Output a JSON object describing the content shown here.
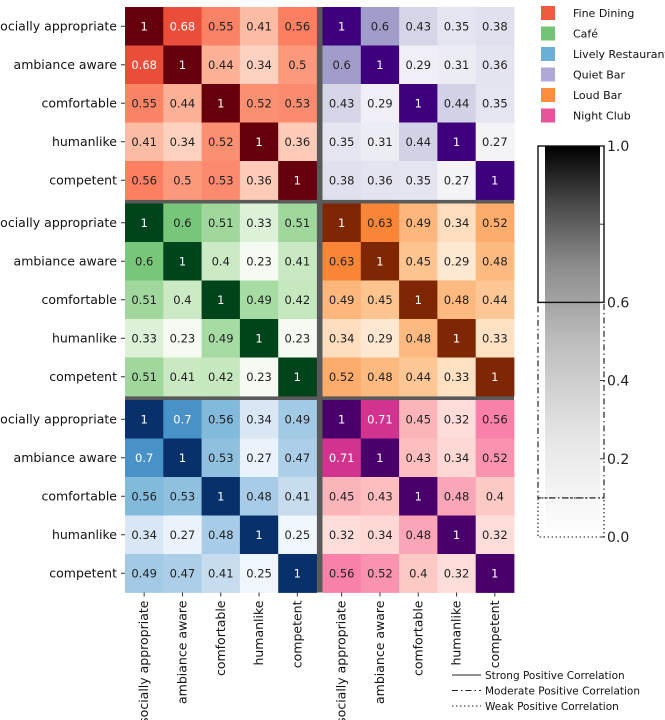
{
  "chart_data": {
    "type": "heatmap",
    "title": "",
    "variables": [
      "socially appropriate",
      "ambiance aware",
      "comfortable",
      "humanlike",
      "competent"
    ],
    "panels": [
      {
        "name": "Fine Dining",
        "color": "#f05a40",
        "matrix": [
          [
            1,
            0.68,
            0.55,
            0.41,
            0.56
          ],
          [
            0.68,
            1,
            0.44,
            0.34,
            0.5
          ],
          [
            0.55,
            0.44,
            1,
            0.52,
            0.53
          ],
          [
            0.41,
            0.34,
            0.52,
            1,
            0.36
          ],
          [
            0.56,
            0.5,
            0.53,
            0.36,
            1
          ]
        ]
      },
      {
        "name": "Quiet Bar",
        "color": "#b0a8d6",
        "matrix": [
          [
            1,
            0.6,
            0.43,
            0.35,
            0.38
          ],
          [
            0.6,
            1,
            0.29,
            0.31,
            0.36
          ],
          [
            0.43,
            0.29,
            1,
            0.44,
            0.35
          ],
          [
            0.35,
            0.31,
            0.44,
            1,
            0.27
          ],
          [
            0.38,
            0.36,
            0.35,
            0.27,
            1
          ]
        ]
      },
      {
        "name": "Café",
        "color": "#74c476",
        "matrix": [
          [
            1,
            0.6,
            0.51,
            0.33,
            0.51
          ],
          [
            0.6,
            1,
            0.4,
            0.23,
            0.41
          ],
          [
            0.51,
            0.4,
            1,
            0.49,
            0.42
          ],
          [
            0.33,
            0.23,
            0.49,
            1,
            0.23
          ],
          [
            0.51,
            0.41,
            0.42,
            0.23,
            1
          ]
        ]
      },
      {
        "name": "Loud Bar",
        "color": "#fd8d3c",
        "matrix": [
          [
            1,
            0.63,
            0.49,
            0.34,
            0.52
          ],
          [
            0.63,
            1,
            0.45,
            0.29,
            0.48
          ],
          [
            0.49,
            0.45,
            1,
            0.48,
            0.44
          ],
          [
            0.34,
            0.29,
            0.48,
            1,
            0.33
          ],
          [
            0.52,
            0.48,
            0.44,
            0.33,
            1
          ]
        ]
      },
      {
        "name": "Lively Restaurant",
        "color": "#6baed6",
        "matrix": [
          [
            1,
            0.7,
            0.56,
            0.34,
            0.49
          ],
          [
            0.7,
            1,
            0.53,
            0.27,
            0.47
          ],
          [
            0.56,
            0.53,
            1,
            0.48,
            0.41
          ],
          [
            0.34,
            0.27,
            0.48,
            1,
            0.25
          ],
          [
            0.49,
            0.47,
            0.41,
            0.25,
            1
          ]
        ]
      },
      {
        "name": "Night Club",
        "color": "#e7529a",
        "matrix": [
          [
            1,
            0.71,
            0.45,
            0.32,
            0.56
          ],
          [
            0.71,
            1,
            0.43,
            0.34,
            0.52
          ],
          [
            0.45,
            0.43,
            1,
            0.48,
            0.4
          ],
          [
            0.32,
            0.34,
            0.48,
            1,
            0.32
          ],
          [
            0.56,
            0.52,
            0.4,
            0.32,
            1
          ]
        ]
      }
    ],
    "legend": {
      "position": "top-right",
      "entries": [
        {
          "label": "Fine Dining",
          "color": "#f05a40"
        },
        {
          "label": "Café",
          "color": "#74c476"
        },
        {
          "label": "Lively Restaurant",
          "color": "#6baed6"
        },
        {
          "label": "Quiet Bar",
          "color": "#b0a8d6"
        },
        {
          "label": "Loud Bar",
          "color": "#fd8d3c"
        },
        {
          "label": "Night Club",
          "color": "#e7529a"
        }
      ]
    },
    "colorbar": {
      "range": [
        0,
        1
      ],
      "ticks": [
        "0.0",
        "0.2",
        "0.4",
        "0.6",
        "0.8",
        "1.0"
      ],
      "regions": [
        {
          "label": "Strong Positive Correlation",
          "range": [
            0.6,
            1.0
          ],
          "style": "solid"
        },
        {
          "label": "Moderate Positive Correlation",
          "range": [
            0.1,
            0.6
          ],
          "style": "dash-dot"
        },
        {
          "label": "Weak Positive Correlation",
          "range": [
            0.0,
            0.1
          ],
          "style": "dotted"
        }
      ]
    },
    "line_legend": [
      {
        "label": "Strong Positive Correlation",
        "style": "solid"
      },
      {
        "label": "Moderate Positive Correlation",
        "style": "dash-dot"
      },
      {
        "label": "Weak Positive Correlation",
        "style": "dotted"
      }
    ],
    "colormaps": {
      "Fine Dining": [
        "#fff5f0",
        "#fcbba1",
        "#fb6a4a",
        "#cb181d",
        "#67000d"
      ],
      "Quiet Bar": [
        "#fcfbfd",
        "#dadaeb",
        "#9e9ac8",
        "#6a51a3",
        "#3f007d"
      ],
      "Café": [
        "#f7fcf5",
        "#c7e9c0",
        "#74c476",
        "#238b45",
        "#00441b"
      ],
      "Loud Bar": [
        "#fff5eb",
        "#fdd0a2",
        "#fd8d3c",
        "#d94801",
        "#7f2704"
      ],
      "Lively Restaurant": [
        "#f7fbff",
        "#c6dbef",
        "#6baed6",
        "#2171b5",
        "#08306b"
      ],
      "Night Club": [
        "#fff7f3",
        "#fcc5c0",
        "#f768a1",
        "#ae017e",
        "#49006a"
      ]
    }
  }
}
